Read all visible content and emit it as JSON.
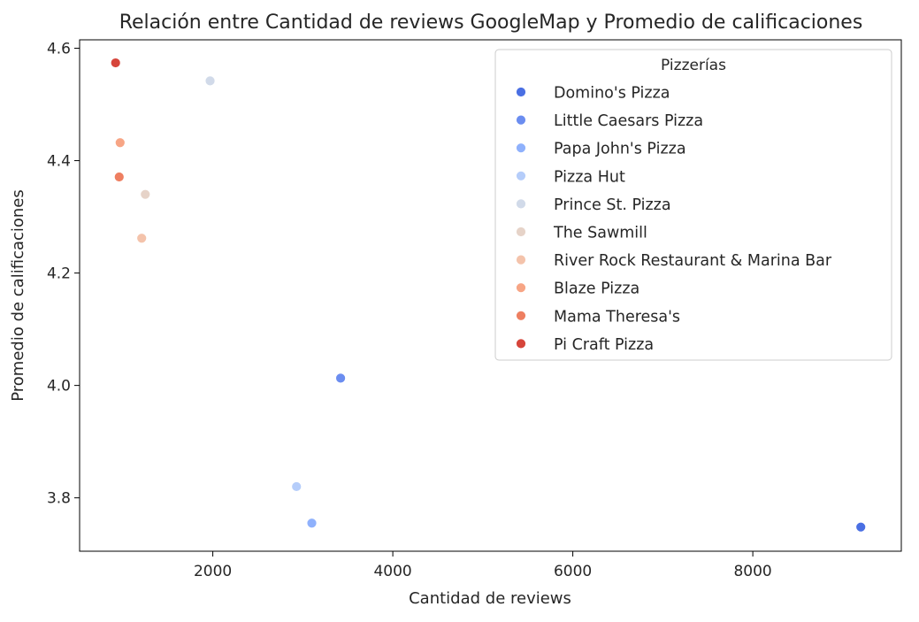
{
  "chart_data": {
    "type": "scatter",
    "title": "Relación entre Cantidad de reviews GoogleMap y Promedio de calificaciones",
    "xlabel": "Cantidad de reviews",
    "ylabel": "Promedio de calificaciones",
    "xlim": [
      520,
      9650
    ],
    "ylim": [
      3.705,
      4.615
    ],
    "xticks": [
      2000,
      4000,
      6000,
      8000
    ],
    "xtick_labels": [
      "2000",
      "4000",
      "6000",
      "8000"
    ],
    "yticks": [
      3.8,
      4.0,
      4.2,
      4.4,
      4.6
    ],
    "ytick_labels": [
      "3.8",
      "4.0",
      "4.2",
      "4.4",
      "4.6"
    ],
    "grid": false,
    "legend": {
      "title": "Pizzerías",
      "placement": "top-right"
    },
    "series": [
      {
        "name": "Domino's Pizza",
        "color": "#4a6fe3",
        "x": [
          9200
        ],
        "y": [
          3.748
        ]
      },
      {
        "name": "Little Caesars Pizza",
        "color": "#6b8df0",
        "x": [
          3420
        ],
        "y": [
          4.013
        ]
      },
      {
        "name": "Papa John's Pizza",
        "color": "#8fb1fc",
        "x": [
          3100
        ],
        "y": [
          3.755
        ]
      },
      {
        "name": "Pizza Hut",
        "color": "#b5cdfa",
        "x": [
          2930
        ],
        "y": [
          3.82
        ]
      },
      {
        "name": "Prince St. Pizza",
        "color": "#d1dae9",
        "x": [
          1970
        ],
        "y": [
          4.542
        ]
      },
      {
        "name": "The Sawmill",
        "color": "#e6d3c8",
        "x": [
          1250
        ],
        "y": [
          4.34
        ]
      },
      {
        "name": "River Rock Restaurant & Marina Bar",
        "color": "#f4c3ab",
        "x": [
          1210
        ],
        "y": [
          4.262
        ]
      },
      {
        "name": "Blaze Pizza",
        "color": "#f7a585",
        "x": [
          970
        ],
        "y": [
          4.432
        ]
      },
      {
        "name": "Mama Theresa's",
        "color": "#ee7f61",
        "x": [
          960
        ],
        "y": [
          4.371
        ]
      },
      {
        "name": "Pi Craft Pizza",
        "color": "#d6453b",
        "x": [
          920
        ],
        "y": [
          4.574
        ]
      }
    ]
  }
}
